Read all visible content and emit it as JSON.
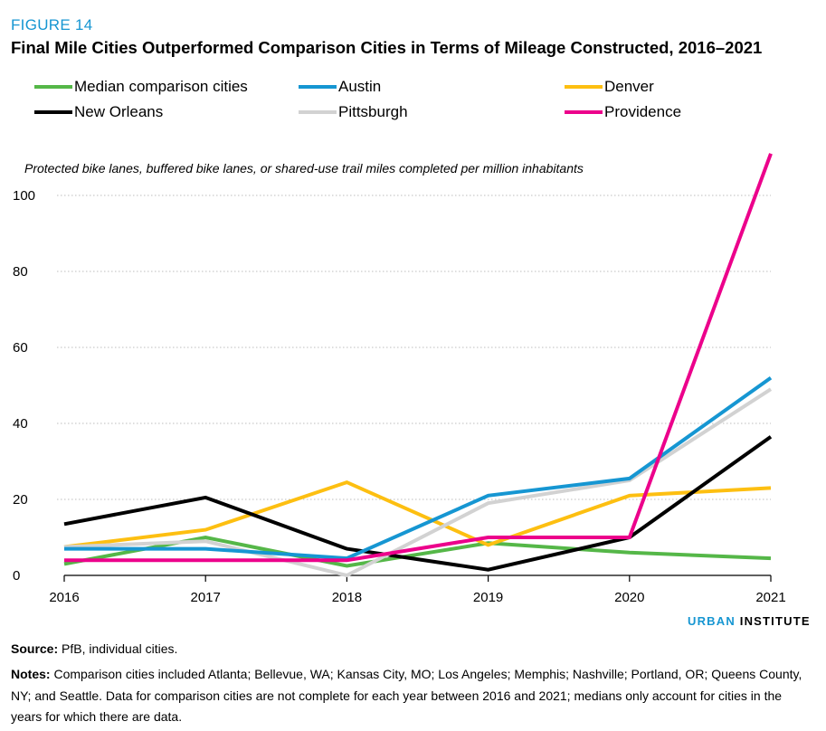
{
  "figure_label": "FIGURE 14",
  "title": "Final Mile Cities Outperformed Comparison Cities in Terms of Mileage Constructed, 2016–2021",
  "subtitle": "Protected bike lanes, buffered bike lanes, or shared-use trail miles completed per million inhabitants",
  "brand": {
    "part1": "URBAN",
    "part2": "INSTITUTE"
  },
  "source": {
    "label": "Source:",
    "text": "PfB, individual cities."
  },
  "notes": {
    "label": "Notes:",
    "text": "Comparison cities included Atlanta; Bellevue, WA; Kansas City, MO; Los Angeles; Memphis; Nashville; Portland, OR; Queens County, NY; and Seattle. Data for comparison cities are not complete for each year between 2016 and 2021; medians only account for cities in the years for which there are data."
  },
  "chart_data": {
    "type": "line",
    "title": "Final Mile Cities Outperformed Comparison Cities in Terms of Mileage Constructed, 2016–2021",
    "ylabel": "Protected bike lanes, buffered bike lanes, or shared-use trail miles completed per million inhabitants",
    "xlabel": "",
    "x": [
      "2016",
      "2017",
      "2018",
      "2019",
      "2020",
      "2021"
    ],
    "ylim": [
      0,
      100
    ],
    "yticks": [
      "0",
      "20",
      "40",
      "60",
      "80",
      "100"
    ],
    "grid": "horizontal dotted",
    "legend_position": "top",
    "series": [
      {
        "name": "Median comparison cities",
        "color": "#55b748",
        "values": [
          3,
          10,
          2.5,
          8.5,
          6,
          4.5
        ]
      },
      {
        "name": "Austin",
        "color": "#1696d2",
        "values": [
          7,
          7,
          4.5,
          21,
          25.5,
          52
        ]
      },
      {
        "name": "Denver",
        "color": "#fdbf11",
        "values": [
          7.5,
          12,
          24.5,
          8,
          21,
          23
        ]
      },
      {
        "name": "New Orleans",
        "color": "#000000",
        "values": [
          13.5,
          20.5,
          7,
          1.5,
          10,
          36.5
        ]
      },
      {
        "name": "Pittsburgh",
        "color": "#d2d2d2",
        "values": [
          7.5,
          9,
          0,
          19,
          25,
          49
        ]
      },
      {
        "name": "Providence",
        "color": "#ec008b",
        "values": [
          4,
          4,
          4,
          10,
          10,
          111
        ]
      }
    ]
  }
}
